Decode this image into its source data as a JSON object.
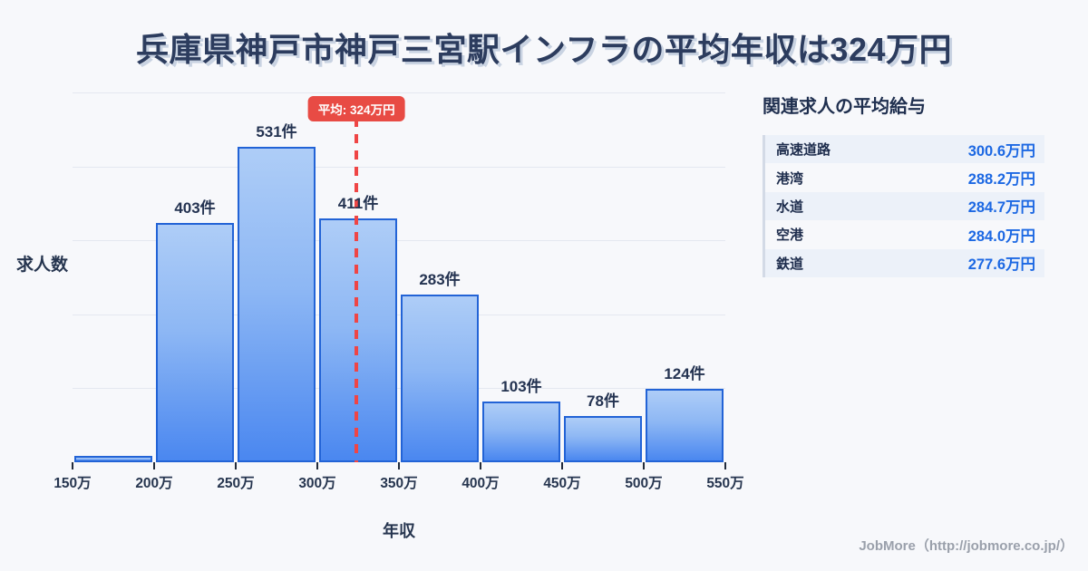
{
  "title": "兵庫県神戸市神戸三宮駅インフラの平均年収は324万円",
  "chart_data": {
    "type": "bar",
    "title": "兵庫県神戸市神戸三宮駅インフラの平均年収は324万円",
    "xlabel": "年収",
    "ylabel": "求人数",
    "x_range": [
      150,
      550
    ],
    "x_tick_labels": [
      "150万",
      "200万",
      "250万",
      "300万",
      "350万",
      "400万",
      "450万",
      "500万",
      "550万"
    ],
    "bins": [
      "150-200万",
      "200-250万",
      "250-300万",
      "300-350万",
      "350-400万",
      "400-450万",
      "450-500万",
      "500-550万"
    ],
    "values": [
      10,
      403,
      531,
      411,
      283,
      103,
      78,
      124
    ],
    "bar_labels": [
      "",
      "403件",
      "531件",
      "411件",
      "283件",
      "103件",
      "78件",
      "124件"
    ],
    "average": 324,
    "average_label": "平均: 324万円",
    "ylim": [
      0,
      623
    ],
    "grid": true,
    "legend": "none",
    "colors": {
      "bar_fill_top": "#aecdf7",
      "bar_fill_bottom": "#4a87f0",
      "bar_border": "#2263d6",
      "average_line": "#ef4545",
      "average_badge_bg": "#e84b44",
      "gridline": "#e4e8f0",
      "text": "#26354f"
    }
  },
  "related": {
    "heading": "関連求人の平均給与",
    "items": [
      {
        "name": "高速道路",
        "value": "300.6万円"
      },
      {
        "name": "港湾",
        "value": "288.2万円"
      },
      {
        "name": "水道",
        "value": "284.7万円"
      },
      {
        "name": "空港",
        "value": "284.0万円"
      },
      {
        "name": "鉄道",
        "value": "277.6万円"
      }
    ],
    "value_color": "#1c68e3",
    "alt_row_bg": "#ecf1f9"
  },
  "footer": {
    "credit": "JobMore（http://jobmore.co.jp/）"
  }
}
